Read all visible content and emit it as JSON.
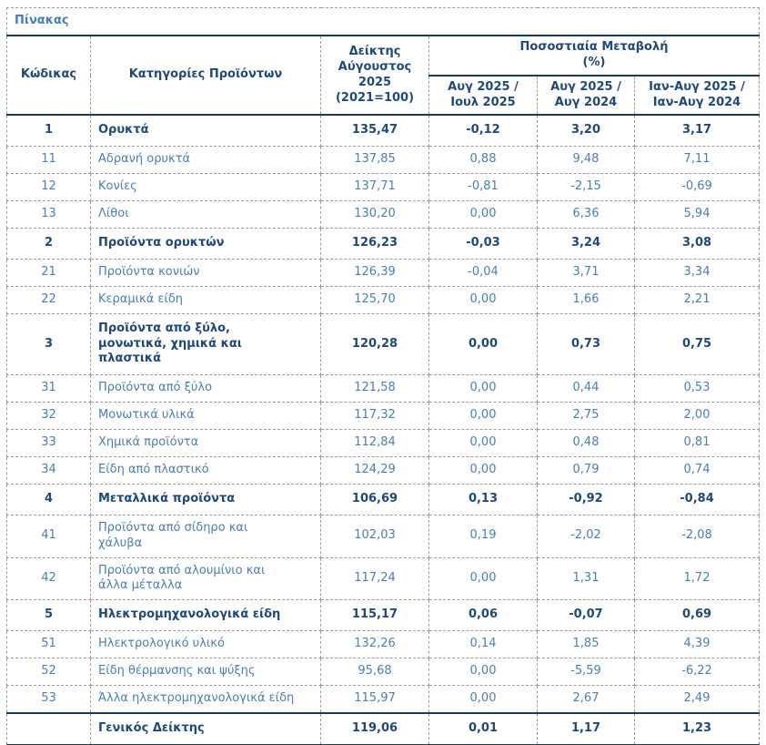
{
  "table": {
    "title": "Πίνακας",
    "headers": {
      "code": "Κώδικας",
      "category": "Κατηγορίες Προϊόντων",
      "index": "Δείκτης\nΑύγουστος\n2025\n(2021=100)",
      "pct_group": "Ποσοστιαία Μεταβολή\n(%)",
      "pct_month": "Αυγ 2025 /\nΙουλ 2025",
      "pct_year": "Αυγ 2025 /\nΑυγ 2024",
      "pct_ytd": "Ιαν-Αυγ 2025 /\nΙαν-Αυγ 2024"
    },
    "rows": [
      {
        "code": "1",
        "category": "Ορυκτά",
        "index": "135,47",
        "m": "-0,12",
        "y": "3,20",
        "ytd": "3,17",
        "bold": true
      },
      {
        "code": "11",
        "category": "Αδρανή ορυκτά",
        "index": "137,85",
        "m": "0,88",
        "y": "9,48",
        "ytd": "7,11",
        "bold": false
      },
      {
        "code": "12",
        "category": "Κονίες",
        "index": "137,71",
        "m": "-0,81",
        "y": "-2,15",
        "ytd": "-0,69",
        "bold": false
      },
      {
        "code": "13",
        "category": "Λίθοι",
        "index": "130,20",
        "m": "0,00",
        "y": "6,36",
        "ytd": "5,94",
        "bold": false
      },
      {
        "code": "2",
        "category": "Προϊόντα ορυκτών",
        "index": "126,23",
        "m": "-0,03",
        "y": "3,24",
        "ytd": "3,08",
        "bold": true
      },
      {
        "code": "21",
        "category": "Προϊόντα κονιών",
        "index": "126,39",
        "m": "-0,04",
        "y": "3,71",
        "ytd": "3,34",
        "bold": false
      },
      {
        "code": "22",
        "category": "Κεραμικά είδη",
        "index": "125,70",
        "m": "0,00",
        "y": "1,66",
        "ytd": "2,21",
        "bold": false
      },
      {
        "code": "3",
        "category": "Προϊόντα από ξύλο,\nμονωτικά, χημικά και\nπλαστικά",
        "index": "120,28",
        "m": "0,00",
        "y": "0,73",
        "ytd": "0,75",
        "bold": true
      },
      {
        "code": "31",
        "category": "Προϊόντα από ξύλο",
        "index": "121,58",
        "m": "0,00",
        "y": "0,44",
        "ytd": "0,53",
        "bold": false
      },
      {
        "code": "32",
        "category": "Μονωτικά υλικά",
        "index": "117,32",
        "m": "0,00",
        "y": "2,75",
        "ytd": "2,00",
        "bold": false
      },
      {
        "code": "33",
        "category": "Χημικά προϊόντα",
        "index": "112,84",
        "m": "0,00",
        "y": "0,48",
        "ytd": "0,81",
        "bold": false
      },
      {
        "code": "34",
        "category": "Είδη από πλαστικό",
        "index": "124,29",
        "m": "0,00",
        "y": "0,79",
        "ytd": "0,74",
        "bold": false
      },
      {
        "code": "4",
        "category": "Μεταλλικά προϊόντα",
        "index": "106,69",
        "m": "0,13",
        "y": "-0,92",
        "ytd": "-0,84",
        "bold": true
      },
      {
        "code": "41",
        "category": "Προϊόντα από σίδηρο και\nχάλυβα",
        "index": "102,03",
        "m": "0,19",
        "y": "-2,02",
        "ytd": "-2,08",
        "bold": false
      },
      {
        "code": "42",
        "category": "Προϊόντα από αλουμίνιο και\nάλλα μέταλλα",
        "index": "117,24",
        "m": "0,00",
        "y": "1,31",
        "ytd": "1,72",
        "bold": false
      },
      {
        "code": "5",
        "category": "Ηλεκτρομηχανολογικά είδη",
        "index": "115,17",
        "m": "0,06",
        "y": "-0,07",
        "ytd": "0,69",
        "bold": true
      },
      {
        "code": "51",
        "category": "Ηλεκτρολογικό υλικό",
        "index": "132,26",
        "m": "0,14",
        "y": "1,85",
        "ytd": "4,39",
        "bold": false
      },
      {
        "code": "52",
        "category": "Είδη θέρμανσης και ψύξης",
        "index": "95,68",
        "m": "0,00",
        "y": "-5,59",
        "ytd": "-6,22",
        "bold": false
      },
      {
        "code": "53",
        "category": "Άλλα ηλεκτρομηχανολογικά είδη",
        "index": "115,97",
        "m": "0,00",
        "y": "2,67",
        "ytd": "2,49",
        "bold": false
      }
    ],
    "footer": {
      "code": "",
      "category": "Γενικός Δείκτης",
      "index": "119,06",
      "m": "0,01",
      "y": "1,17",
      "ytd": "1,23"
    },
    "colors": {
      "regular_text": "#4a7eb8",
      "bold_text": "#1f497d",
      "solid_border": "#17375e",
      "dashed_border": "#9e9e9e"
    }
  }
}
